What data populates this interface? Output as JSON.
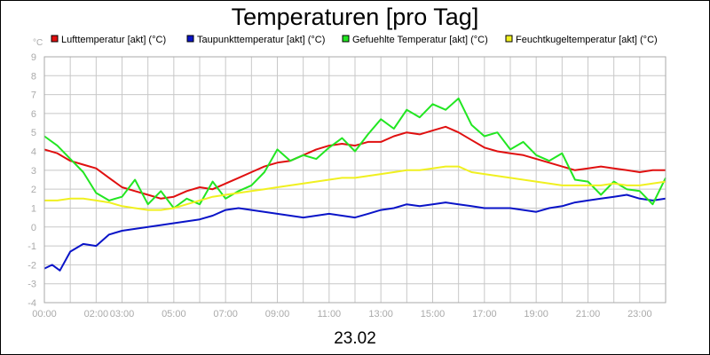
{
  "chart_data": {
    "type": "line",
    "title": "Temperaturen [pro Tag]",
    "date_label": "23.02",
    "y_unit": "°C",
    "ylim": [
      -4,
      9
    ],
    "y_ticks": [
      "-4",
      "-3",
      "-2",
      "-1",
      "0",
      "1",
      "2",
      "3",
      "4",
      "5",
      "6",
      "7",
      "8",
      "9"
    ],
    "x_ticks": [
      {
        "label": "00:00",
        "hour": 0
      },
      {
        "label": "02:00",
        "hour": 2
      },
      {
        "label": "03:00",
        "hour": 3
      },
      {
        "label": "05:00",
        "hour": 5
      },
      {
        "label": "07:00",
        "hour": 7
      },
      {
        "label": "09:00",
        "hour": 9
      },
      {
        "label": "11:00",
        "hour": 11
      },
      {
        "label": "13:00",
        "hour": 13
      },
      {
        "label": "15:00",
        "hour": 15
      },
      {
        "label": "17:00",
        "hour": 17
      },
      {
        "label": "19:00",
        "hour": 19
      },
      {
        "label": "21:00",
        "hour": 21
      },
      {
        "label": "23:00",
        "hour": 23
      }
    ],
    "xlim_hours": [
      0,
      24
    ],
    "grid": true,
    "legend_position": "top",
    "series": [
      {
        "name": "Lufttemperatur [akt] (°C)",
        "color": "#e01010",
        "hours": [
          0,
          0.5,
          1,
          1.5,
          2,
          2.5,
          3,
          3.5,
          4,
          4.5,
          5,
          5.5,
          6,
          6.5,
          7,
          7.5,
          8,
          8.5,
          9,
          9.5,
          10,
          10.5,
          11,
          11.5,
          12,
          12.5,
          13,
          13.5,
          14,
          14.5,
          15,
          15.5,
          16,
          16.5,
          17,
          17.5,
          18,
          18.5,
          19,
          19.5,
          20,
          20.5,
          21,
          21.5,
          22,
          22.5,
          23,
          23.5,
          24
        ],
        "values": [
          4.1,
          3.9,
          3.5,
          3.3,
          3.1,
          2.6,
          2.1,
          1.9,
          1.7,
          1.5,
          1.6,
          1.9,
          2.1,
          2.0,
          2.3,
          2.6,
          2.9,
          3.2,
          3.4,
          3.5,
          3.8,
          4.1,
          4.3,
          4.4,
          4.3,
          4.5,
          4.5,
          4.8,
          5.0,
          4.9,
          5.1,
          5.3,
          5.0,
          4.6,
          4.2,
          4.0,
          3.9,
          3.8,
          3.6,
          3.4,
          3.2,
          3.0,
          3.1,
          3.2,
          3.1,
          3.0,
          2.9,
          3.0,
          3.0
        ]
      },
      {
        "name": "Taupunkttemperatur [akt] (°C)",
        "color": "#0a14c8",
        "hours": [
          0,
          0.3,
          0.6,
          1,
          1.5,
          2,
          2.5,
          3,
          3.5,
          4,
          4.5,
          5,
          5.5,
          6,
          6.5,
          7,
          7.5,
          8,
          8.5,
          9,
          9.5,
          10,
          10.5,
          11,
          11.5,
          12,
          12.5,
          13,
          13.5,
          14,
          14.5,
          15,
          15.5,
          16,
          16.5,
          17,
          17.5,
          18,
          18.5,
          19,
          19.5,
          20,
          20.5,
          21,
          21.5,
          22,
          22.5,
          23,
          23.5,
          24
        ],
        "values": [
          -2.2,
          -2.0,
          -2.3,
          -1.3,
          -0.9,
          -1.0,
          -0.4,
          -0.2,
          -0.1,
          0.0,
          0.1,
          0.2,
          0.3,
          0.4,
          0.6,
          0.9,
          1.0,
          0.9,
          0.8,
          0.7,
          0.6,
          0.5,
          0.6,
          0.7,
          0.6,
          0.5,
          0.7,
          0.9,
          1.0,
          1.2,
          1.1,
          1.2,
          1.3,
          1.2,
          1.1,
          1.0,
          1.0,
          1.0,
          0.9,
          0.8,
          1.0,
          1.1,
          1.3,
          1.4,
          1.5,
          1.6,
          1.7,
          1.5,
          1.4,
          1.5
        ]
      },
      {
        "name": "Gefuehlte Temperatur [akt] (°C)",
        "color": "#22e622",
        "hours": [
          0,
          0.5,
          1,
          1.5,
          2,
          2.5,
          3,
          3.5,
          4,
          4.5,
          5,
          5.5,
          6,
          6.5,
          7,
          7.5,
          8,
          8.5,
          9,
          9.5,
          10,
          10.5,
          11,
          11.5,
          12,
          12.5,
          13,
          13.5,
          14,
          14.5,
          15,
          15.5,
          16,
          16.5,
          17,
          17.5,
          18,
          18.5,
          19,
          19.5,
          20,
          20.5,
          21,
          21.5,
          22,
          22.5,
          23,
          23.5,
          24
        ],
        "values": [
          4.8,
          4.3,
          3.6,
          2.9,
          1.8,
          1.4,
          1.6,
          2.5,
          1.2,
          1.9,
          1.0,
          1.5,
          1.2,
          2.4,
          1.5,
          1.9,
          2.2,
          2.9,
          4.1,
          3.5,
          3.8,
          3.6,
          4.2,
          4.7,
          4.0,
          4.9,
          5.7,
          5.2,
          6.2,
          5.8,
          6.5,
          6.2,
          6.8,
          5.4,
          4.8,
          5.0,
          4.1,
          4.5,
          3.8,
          3.5,
          3.9,
          2.5,
          2.4,
          1.7,
          2.4,
          2.0,
          1.9,
          1.2,
          2.6
        ]
      },
      {
        "name": "Feuchtkugeltemperatur [akt] (°C)",
        "color": "#f0f020",
        "hours": [
          0,
          0.5,
          1,
          1.5,
          2,
          2.5,
          3,
          3.5,
          4,
          4.5,
          5,
          5.5,
          6,
          6.5,
          7,
          7.5,
          8,
          8.5,
          9,
          9.5,
          10,
          10.5,
          11,
          11.5,
          12,
          12.5,
          13,
          13.5,
          14,
          14.5,
          15,
          15.5,
          16,
          16.5,
          17,
          17.5,
          18,
          18.5,
          19,
          19.5,
          20,
          20.5,
          21,
          21.5,
          22,
          22.5,
          23,
          23.5,
          24
        ],
        "values": [
          1.4,
          1.4,
          1.5,
          1.5,
          1.4,
          1.3,
          1.1,
          1.0,
          0.9,
          0.9,
          1.0,
          1.2,
          1.4,
          1.6,
          1.7,
          1.8,
          1.9,
          2.0,
          2.1,
          2.2,
          2.3,
          2.4,
          2.5,
          2.6,
          2.6,
          2.7,
          2.8,
          2.9,
          3.0,
          3.0,
          3.1,
          3.2,
          3.2,
          2.9,
          2.8,
          2.7,
          2.6,
          2.5,
          2.4,
          2.3,
          2.2,
          2.2,
          2.2,
          2.2,
          2.3,
          2.2,
          2.2,
          2.3,
          2.4
        ]
      }
    ]
  }
}
